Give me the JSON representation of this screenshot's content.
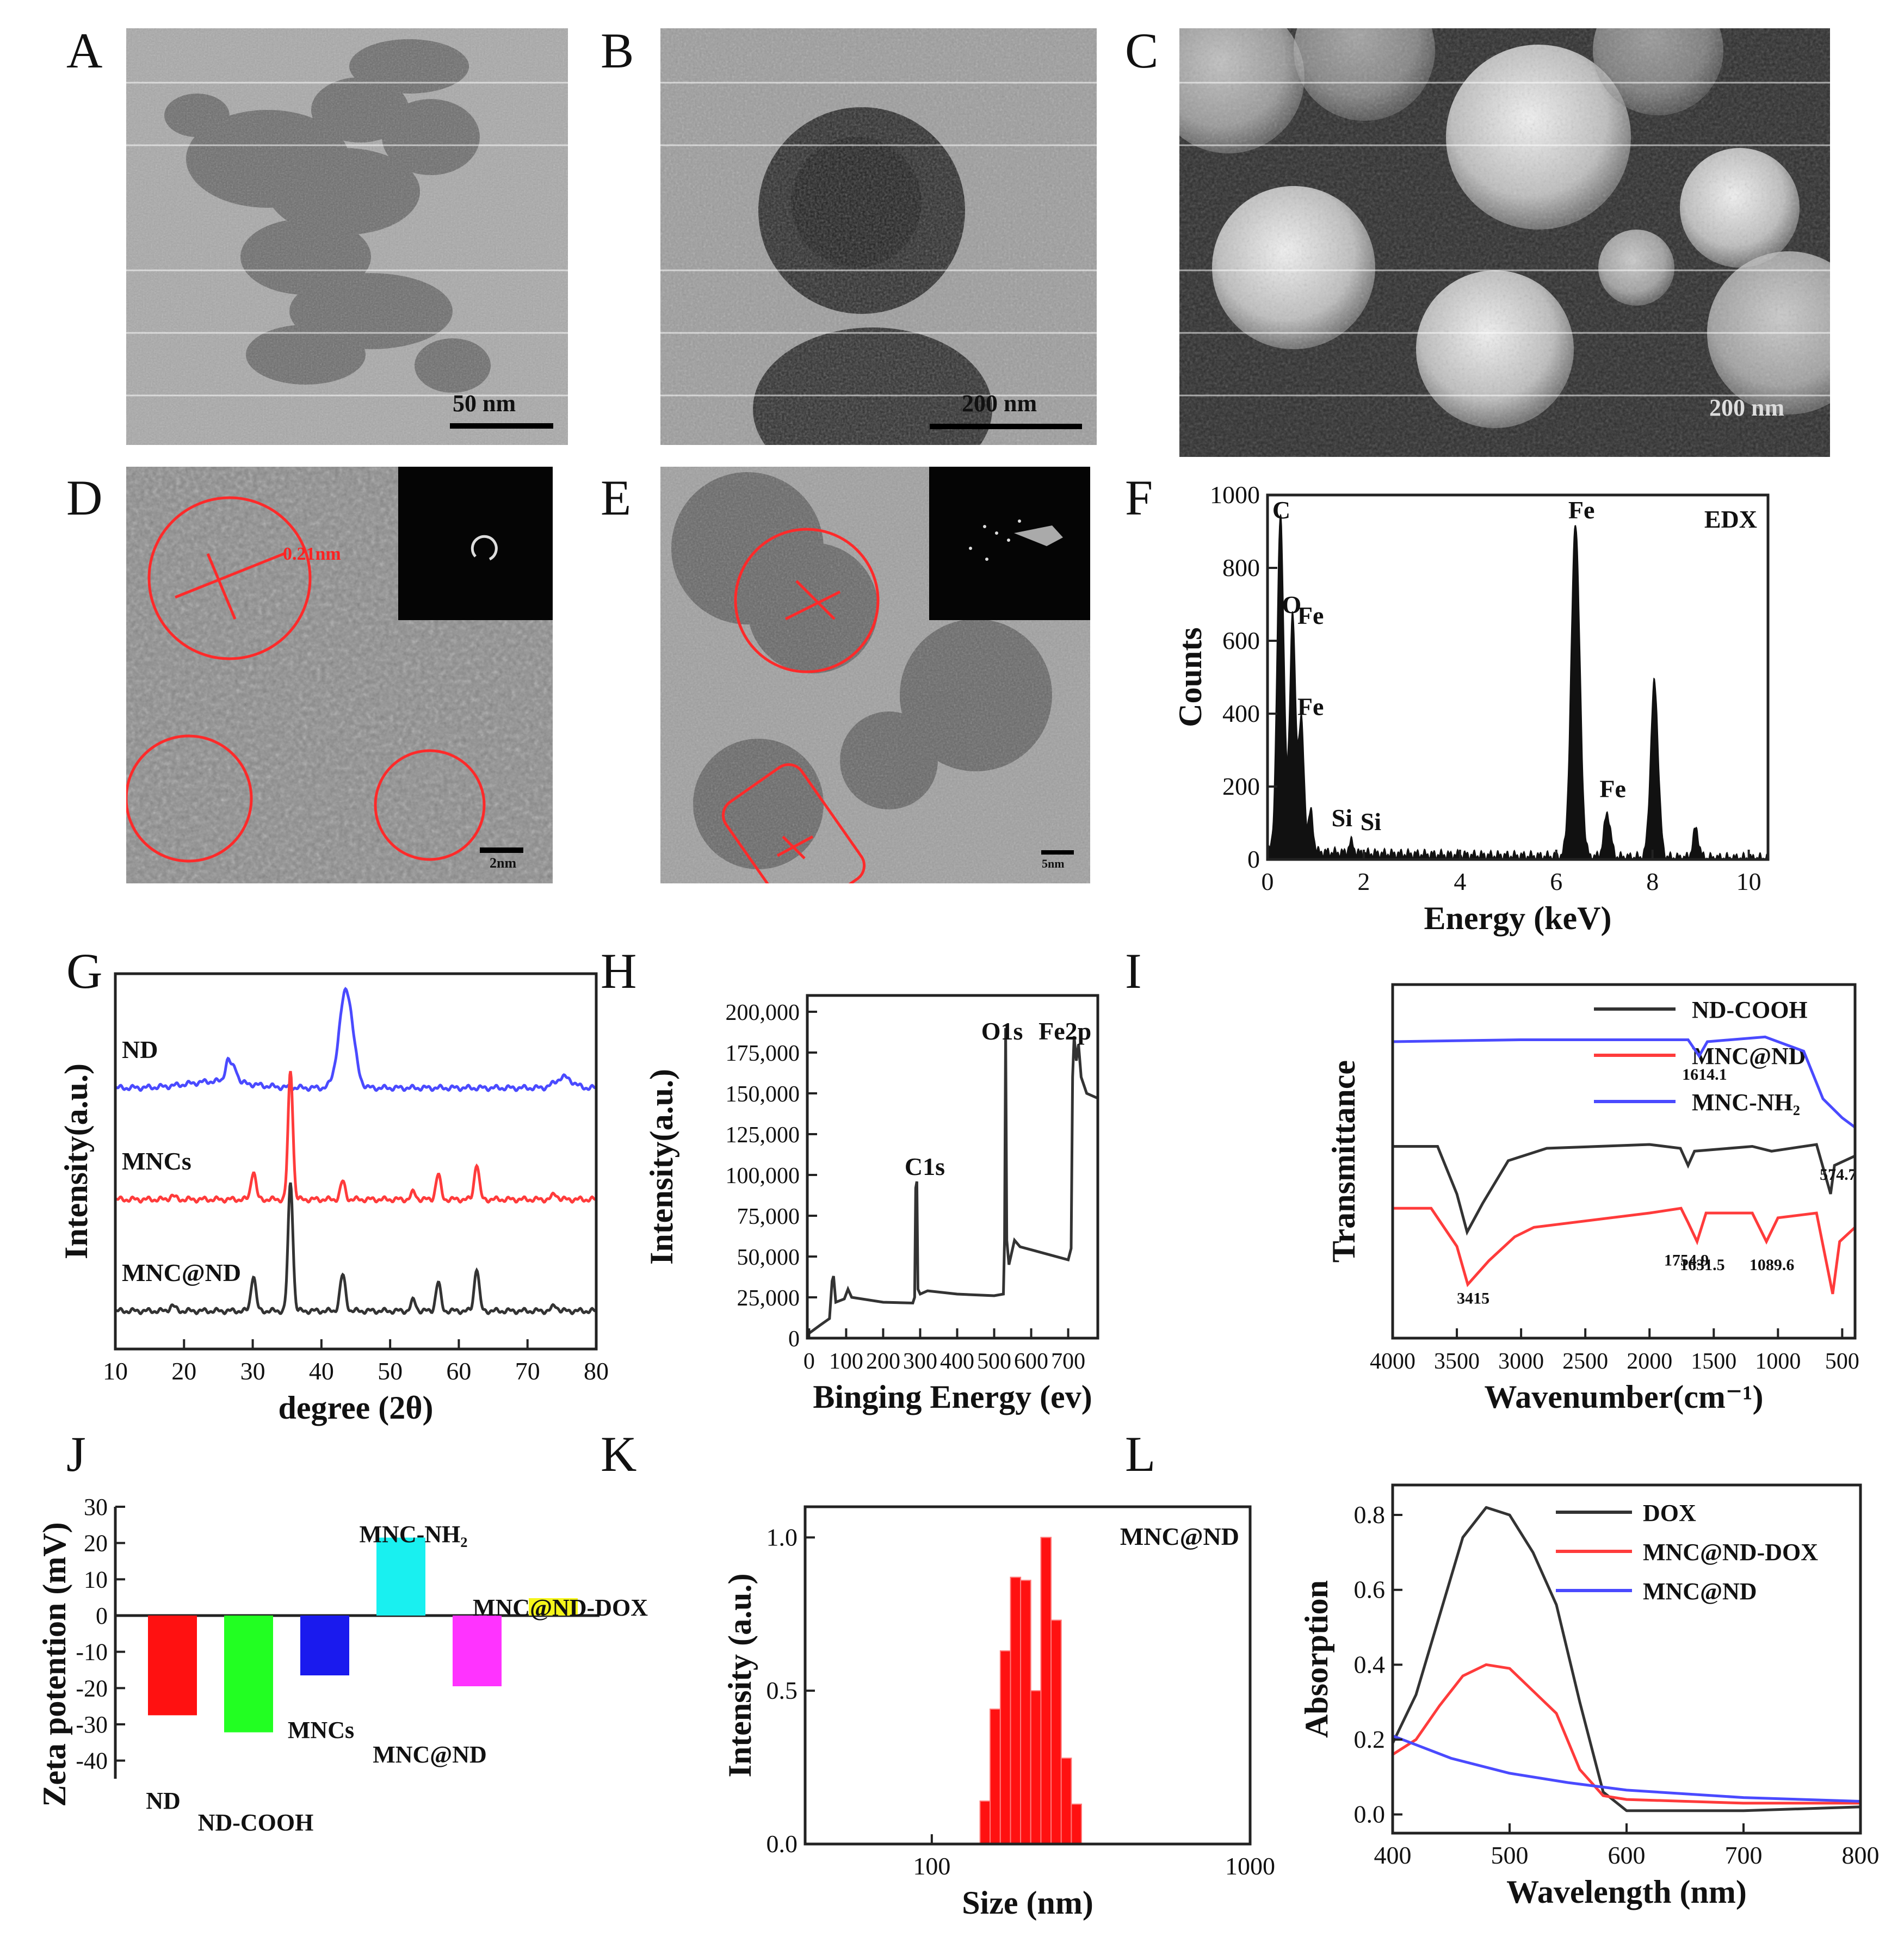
{
  "panels": {
    "A": {
      "letter": "A",
      "scale": "50 nm"
    },
    "B": {
      "letter": "B",
      "scale": "200 nm"
    },
    "C": {
      "letter": "C",
      "scale": "200 nm"
    },
    "D": {
      "letter": "D",
      "lattice": "0.21nm",
      "scale": "2nm"
    },
    "E": {
      "letter": "E",
      "scale": "5nm"
    },
    "F": {
      "letter": "F"
    },
    "G": {
      "letter": "G"
    },
    "H": {
      "letter": "H"
    },
    "I": {
      "letter": "I"
    },
    "J": {
      "letter": "J"
    },
    "K": {
      "letter": "K"
    },
    "L": {
      "letter": "L"
    }
  },
  "colors": {
    "black": "#333333",
    "red": "#ff3b3b",
    "blue": "#4a4aff",
    "cyan": "#19f0f0",
    "green": "#22ff22",
    "navy": "#1a1aee",
    "magenta": "#ff33ff",
    "yellow": "#f5f51a",
    "barred": "#ff1111",
    "annot_red": "#ff2222"
  },
  "chart_data": [
    {
      "id": "F",
      "type": "area",
      "xlabel": "Energy (keV)",
      "ylabel": "Counts",
      "xlim": [
        0,
        10.4
      ],
      "ylim": [
        0,
        1000
      ],
      "xticks": [
        0,
        2,
        4,
        6,
        8,
        10
      ],
      "yticks": [
        0,
        200,
        400,
        600,
        800,
        1000
      ],
      "legend": "EDX",
      "peaks": [
        {
          "x": 0.27,
          "y": 930,
          "w": 0.07
        },
        {
          "x": 0.52,
          "y": 650,
          "w": 0.06
        },
        {
          "x": 0.7,
          "y": 360,
          "w": 0.06
        },
        {
          "x": 0.9,
          "y": 110,
          "w": 0.05
        },
        {
          "x": 1.74,
          "y": 30,
          "w": 0.05
        },
        {
          "x": 6.4,
          "y": 920,
          "w": 0.09
        },
        {
          "x": 7.06,
          "y": 120,
          "w": 0.07
        },
        {
          "x": 8.04,
          "y": 480,
          "w": 0.08
        },
        {
          "x": 8.9,
          "y": 80,
          "w": 0.06
        }
      ],
      "baseline": 25,
      "annotations": [
        {
          "text": "C",
          "x": 0.1,
          "y": 930
        },
        {
          "text": "O",
          "x": 0.3,
          "y": 670
        },
        {
          "text": "Fe",
          "x": 0.62,
          "y": 640
        },
        {
          "text": "Fe",
          "x": 0.62,
          "y": 390
        },
        {
          "text": "Si",
          "x": 1.33,
          "y": 85
        },
        {
          "text": "Si",
          "x": 1.93,
          "y": 75
        },
        {
          "text": "Fe",
          "x": 6.25,
          "y": 930
        },
        {
          "text": "Fe",
          "x": 6.9,
          "y": 165
        }
      ]
    },
    {
      "id": "G",
      "type": "line",
      "xlabel": "degree (2θ)",
      "ylabel": "Intensity(a.u.)",
      "xlim": [
        10,
        80
      ],
      "xticks": [
        10,
        20,
        30,
        40,
        50,
        60,
        70,
        80
      ],
      "series": [
        {
          "name": "ND",
          "color": "blue",
          "offset": 2.0,
          "peaks": [
            [
              26.4,
              0.12,
              0.4
            ],
            [
              27.4,
              0.08,
              0.4
            ],
            [
              43.6,
              0.55,
              1.0
            ],
            [
              75.3,
              0.06,
              1.2
            ]
          ]
        },
        {
          "name": "MNCs",
          "color": "red",
          "offset": 1.0,
          "peaks": [
            [
              18.3,
              0.02,
              0.4
            ],
            [
              30.1,
              0.16,
              0.35
            ],
            [
              35.5,
              0.72,
              0.35
            ],
            [
              43.1,
              0.1,
              0.35
            ],
            [
              53.4,
              0.04,
              0.35
            ],
            [
              57.0,
              0.14,
              0.35
            ],
            [
              62.6,
              0.2,
              0.35
            ],
            [
              74.0,
              0.03,
              0.4
            ]
          ]
        },
        {
          "name": "MNC@ND",
          "color": "black",
          "offset": 0.0,
          "peaks": [
            [
              18.3,
              0.03,
              0.4
            ],
            [
              30.1,
              0.2,
              0.35
            ],
            [
              35.5,
              0.72,
              0.35
            ],
            [
              43.1,
              0.2,
              0.4
            ],
            [
              53.4,
              0.06,
              0.35
            ],
            [
              57.0,
              0.16,
              0.35
            ],
            [
              62.6,
              0.24,
              0.35
            ],
            [
              74.0,
              0.03,
              0.4
            ]
          ]
        }
      ]
    },
    {
      "id": "H",
      "type": "line",
      "xlabel": "Binging Energy (ev)",
      "ylabel": "Intensity(a.u.)",
      "xlim": [
        -5,
        780
      ],
      "ylim": [
        0,
        210000
      ],
      "xticks": [
        0,
        100,
        200,
        300,
        400,
        500,
        600,
        700
      ],
      "yticks": [
        0,
        25000,
        50000,
        75000,
        100000,
        125000,
        150000,
        175000,
        200000
      ],
      "ytick_labels": [
        "0",
        "25,000",
        "50,000",
        "75,000",
        "100,000",
        "125,000",
        "150,000",
        "175,000",
        "200,000"
      ],
      "points": [
        [
          0,
          3000
        ],
        [
          30,
          8000
        ],
        [
          55,
          12000
        ],
        [
          62,
          35000
        ],
        [
          66,
          38000
        ],
        [
          72,
          22000
        ],
        [
          95,
          24000
        ],
        [
          105,
          30000
        ],
        [
          115,
          25000
        ],
        [
          200,
          22000
        ],
        [
          280,
          21500
        ],
        [
          285,
          25000
        ],
        [
          288,
          92000
        ],
        [
          291,
          96000
        ],
        [
          294,
          30000
        ],
        [
          300,
          27000
        ],
        [
          320,
          29000
        ],
        [
          400,
          27000
        ],
        [
          500,
          26000
        ],
        [
          525,
          27000
        ],
        [
          528,
          60000
        ],
        [
          531,
          190000
        ],
        [
          534,
          60000
        ],
        [
          540,
          45000
        ],
        [
          555,
          60000
        ],
        [
          570,
          56000
        ],
        [
          700,
          48000
        ],
        [
          708,
          55000
        ],
        [
          712,
          160000
        ],
        [
          716,
          185000
        ],
        [
          722,
          170000
        ],
        [
          728,
          180000
        ],
        [
          735,
          160000
        ],
        [
          750,
          150000
        ],
        [
          780,
          147000
        ]
      ],
      "annotations": [
        {
          "text": "C1s",
          "x": 258,
          "y": 100000
        },
        {
          "text": "O1s",
          "x": 465,
          "y": 183000
        },
        {
          "text": "Fe2p",
          "x": 620,
          "y": 183000
        }
      ]
    },
    {
      "id": "I",
      "type": "line",
      "xlabel": "Wavenumber(cm⁻¹)",
      "ylabel": "Transmittance",
      "xlim": [
        4000,
        400
      ],
      "xaxis": "reversed",
      "xticks": [
        4000,
        3500,
        3000,
        2500,
        2000,
        1500,
        1000,
        500
      ],
      "legend": "top-right",
      "series": [
        {
          "name": "ND-COOH",
          "color": "black",
          "points": [
            [
              4000,
              2.9
            ],
            [
              3650,
              2.9
            ],
            [
              3500,
              2.4
            ],
            [
              3420,
              2.0
            ],
            [
              3300,
              2.3
            ],
            [
              3100,
              2.75
            ],
            [
              2800,
              2.88
            ],
            [
              2000,
              2.92
            ],
            [
              1760,
              2.88
            ],
            [
              1700,
              2.7
            ],
            [
              1650,
              2.85
            ],
            [
              1200,
              2.9
            ],
            [
              1050,
              2.85
            ],
            [
              700,
              2.92
            ],
            [
              590,
              2.4
            ],
            [
              560,
              2.7
            ],
            [
              400,
              2.8
            ]
          ]
        },
        {
          "name": "MNC@ND",
          "color": "red",
          "points": [
            [
              4000,
              2.25
            ],
            [
              3700,
              2.25
            ],
            [
              3500,
              1.85
            ],
            [
              3415,
              1.45
            ],
            [
              3250,
              1.7
            ],
            [
              3050,
              1.95
            ],
            [
              2900,
              2.05
            ],
            [
              2000,
              2.2
            ],
            [
              1755,
              2.25
            ],
            [
              1700,
              2.1
            ],
            [
              1630,
              1.9
            ],
            [
              1560,
              2.2
            ],
            [
              1200,
              2.2
            ],
            [
              1090,
              1.9
            ],
            [
              1000,
              2.15
            ],
            [
              700,
              2.2
            ],
            [
              574,
              1.35
            ],
            [
              520,
              1.9
            ],
            [
              400,
              2.05
            ]
          ]
        },
        {
          "name": "MNC-NH₂",
          "color": "blue",
          "points": [
            [
              4000,
              4.0
            ],
            [
              3000,
              4.02
            ],
            [
              1700,
              4.02
            ],
            [
              1614,
              3.85
            ],
            [
              1550,
              4.0
            ],
            [
              1100,
              4.05
            ],
            [
              800,
              3.9
            ],
            [
              650,
              3.4
            ],
            [
              500,
              3.2
            ],
            [
              400,
              3.1
            ]
          ]
        }
      ],
      "annotations": [
        {
          "text": "1614.1",
          "x": 1614
        },
        {
          "text": "574.7",
          "x": 574
        },
        {
          "text": "3415",
          "x": 3415
        },
        {
          "text": "1754.9",
          "x": 1755
        },
        {
          "text": "1631.5",
          "x": 1631
        },
        {
          "text": "1089.6",
          "x": 1090
        }
      ]
    },
    {
      "id": "J",
      "type": "bar",
      "ylabel": "Zeta potention (mV)",
      "ylim": [
        -45,
        30
      ],
      "yticks": [
        -40,
        -30,
        -20,
        -10,
        0,
        10,
        20,
        30
      ],
      "categories": [
        "ND",
        "ND-COOH",
        "MNCs",
        "MNC-NH₂",
        "MNC@ND",
        "MNC@ND-DOX"
      ],
      "values": [
        -27.5,
        -32.2,
        -16.5,
        21.5,
        -19.5,
        4.8
      ],
      "bar_colors": [
        "barred",
        "green",
        "navy",
        "cyan",
        "magenta",
        "yellow"
      ]
    },
    {
      "id": "K",
      "type": "bar",
      "xlabel": "Size (nm)",
      "ylabel": "Intensity (a.u.)",
      "xaxis": "log",
      "xlim": [
        40,
        1000
      ],
      "ylim": [
        0,
        1.1
      ],
      "xticks": [
        100,
        1000
      ],
      "yticks": [
        0.0,
        0.5,
        1.0
      ],
      "ytick_labels": [
        "0.0",
        "0.5",
        "1.0"
      ],
      "legend": "MNC@ND",
      "categories": [
        141.8,
        164.2,
        190.1,
        220.2,
        255.0,
        295.3
      ],
      "values": [
        0.14,
        0.44,
        0.86,
        1.0,
        0.73,
        0.28
      ],
      "extra_values": [
        0.63,
        0.87,
        0.5,
        0.13
      ]
    },
    {
      "id": "L",
      "type": "line",
      "xlabel": "Wavelength (nm)",
      "ylabel": "Absorption",
      "xlim": [
        400,
        800
      ],
      "ylim": [
        -0.05,
        0.88
      ],
      "xticks": [
        400,
        500,
        600,
        700,
        800
      ],
      "yticks": [
        0.0,
        0.2,
        0.4,
        0.6,
        0.8
      ],
      "legend": "top-right",
      "series": [
        {
          "name": "DOX",
          "color": "black",
          "points": [
            [
              400,
              0.19
            ],
            [
              420,
              0.32
            ],
            [
              440,
              0.53
            ],
            [
              460,
              0.74
            ],
            [
              480,
              0.82
            ],
            [
              500,
              0.8
            ],
            [
              520,
              0.7
            ],
            [
              540,
              0.56
            ],
            [
              560,
              0.3
            ],
            [
              580,
              0.06
            ],
            [
              600,
              0.01
            ],
            [
              700,
              0.01
            ],
            [
              800,
              0.02
            ]
          ]
        },
        {
          "name": "MNC@ND-DOX",
          "color": "red",
          "points": [
            [
              400,
              0.16
            ],
            [
              420,
              0.2
            ],
            [
              440,
              0.29
            ],
            [
              460,
              0.37
            ],
            [
              480,
              0.4
            ],
            [
              500,
              0.39
            ],
            [
              520,
              0.33
            ],
            [
              540,
              0.27
            ],
            [
              560,
              0.12
            ],
            [
              580,
              0.05
            ],
            [
              600,
              0.04
            ],
            [
              700,
              0.03
            ],
            [
              800,
              0.03
            ]
          ]
        },
        {
          "name": "MNC@ND",
          "color": "blue",
          "points": [
            [
              400,
              0.21
            ],
            [
              450,
              0.15
            ],
            [
              500,
              0.11
            ],
            [
              550,
              0.085
            ],
            [
              600,
              0.065
            ],
            [
              700,
              0.045
            ],
            [
              800,
              0.035
            ]
          ]
        }
      ]
    }
  ]
}
